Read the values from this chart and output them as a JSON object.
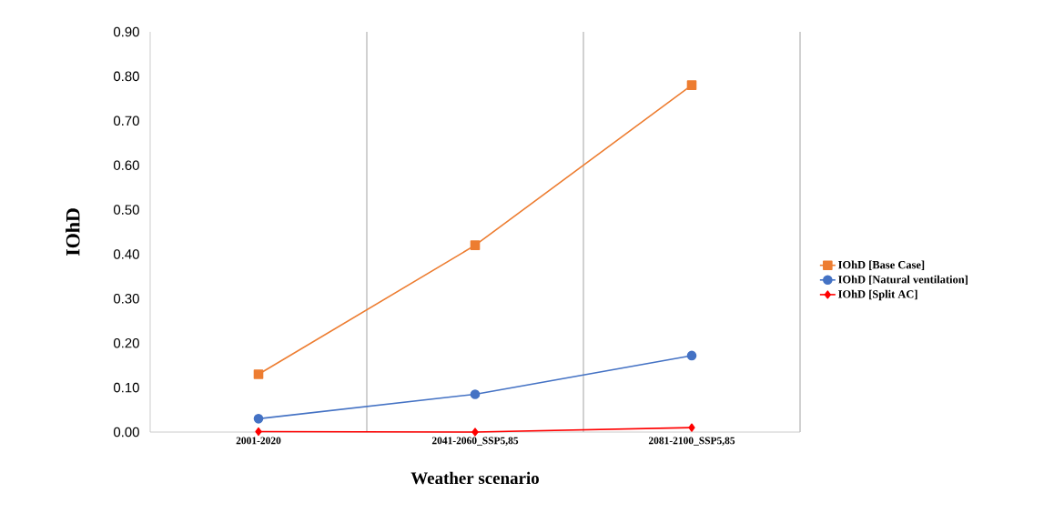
{
  "chart_data": {
    "type": "line",
    "xlabel": "Weather scenario",
    "ylabel": "IOhD",
    "categories": [
      "2001-2020",
      "2041-2060_SSP5,85",
      "2081-2100_SSP5,85"
    ],
    "series": [
      {
        "name": "IOhD [Base Case]",
        "color": "#ed7d31",
        "marker": "square",
        "values": [
          0.13,
          0.42,
          0.78
        ]
      },
      {
        "name": "IOhD [Natural ventilation]",
        "color": "#4472c4",
        "marker": "circle",
        "values": [
          0.03,
          0.085,
          0.172
        ]
      },
      {
        "name": "IOhD [Split AC]",
        "color": "#ff0000",
        "marker": "diamond",
        "values": [
          0.001,
          0.0,
          0.01
        ]
      }
    ],
    "ylim": [
      0,
      0.9
    ],
    "yticks": [
      {
        "value": 0,
        "label": "0.00"
      },
      {
        "value": 0.1,
        "label": "0.10"
      },
      {
        "value": 0.2,
        "label": "0.20"
      },
      {
        "value": 0.3,
        "label": "0.30"
      },
      {
        "value": 0.4,
        "label": "0.40"
      },
      {
        "value": 0.5,
        "label": "0.50"
      },
      {
        "value": 0.6,
        "label": "0.60"
      },
      {
        "value": 0.7,
        "label": "0.70"
      },
      {
        "value": 0.8,
        "label": "0.80"
      },
      {
        "value": 0.9,
        "label": "0.90"
      }
    ],
    "grid": "x",
    "legend": "right",
    "line_style": "solid"
  }
}
